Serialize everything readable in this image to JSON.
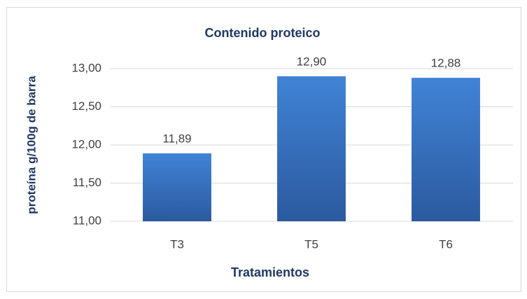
{
  "chart_data": {
    "type": "bar",
    "title": "Contenido proteico",
    "x_label": "Tratamientos",
    "y_label": "proteína g/100g de barra",
    "categories": [
      "T3",
      "T5",
      "T6"
    ],
    "values": [
      11.89,
      12.9,
      12.88
    ],
    "value_labels": [
      "11,89",
      "12,90",
      "12,88"
    ],
    "color": "#3a75c4",
    "ylim": [
      11,
      13
    ],
    "yticks": [
      {
        "value": 11,
        "label": "11,00"
      },
      {
        "value": 11.5,
        "label": "11,50"
      },
      {
        "value": 12,
        "label": "12,00"
      },
      {
        "value": 12.5,
        "label": "12,50"
      },
      {
        "value": 13,
        "label": "13,00"
      }
    ],
    "grid": true
  }
}
